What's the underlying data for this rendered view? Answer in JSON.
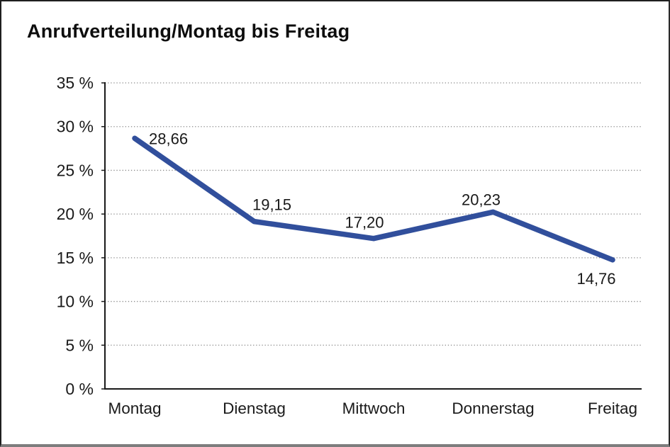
{
  "frame": {
    "background": "#ffffff",
    "border_color": "#1f1f1f",
    "bottom_bar_color": "#7d7d7d"
  },
  "chart_data": {
    "type": "line",
    "title": "Anrufverteilung/Montag bis Freitag",
    "categories": [
      "Montag",
      "Dienstag",
      "Mittwoch",
      "Donnerstag",
      "Freitag"
    ],
    "series": [
      {
        "name": "Anrufverteilung",
        "values": [
          28.66,
          19.15,
          17.2,
          20.23,
          14.76
        ],
        "color": "#314F9C"
      }
    ],
    "data_labels": [
      "28,66",
      "19,15",
      "17,20",
      "20,23",
      "14,76"
    ],
    "xlabel": "",
    "ylabel": "",
    "ylim": [
      0,
      35
    ],
    "ytick_step": 5,
    "ytick_labels": [
      "0 %",
      "5 %",
      "10 %",
      "15 %",
      "20 %",
      "25 %",
      "30 %",
      "35 %"
    ],
    "grid": "horizontal-dotted",
    "legend": "none",
    "axis_color": "#1a1a1a",
    "grid_color": "#8a8a8a",
    "label_color": "#1a1a1a"
  }
}
